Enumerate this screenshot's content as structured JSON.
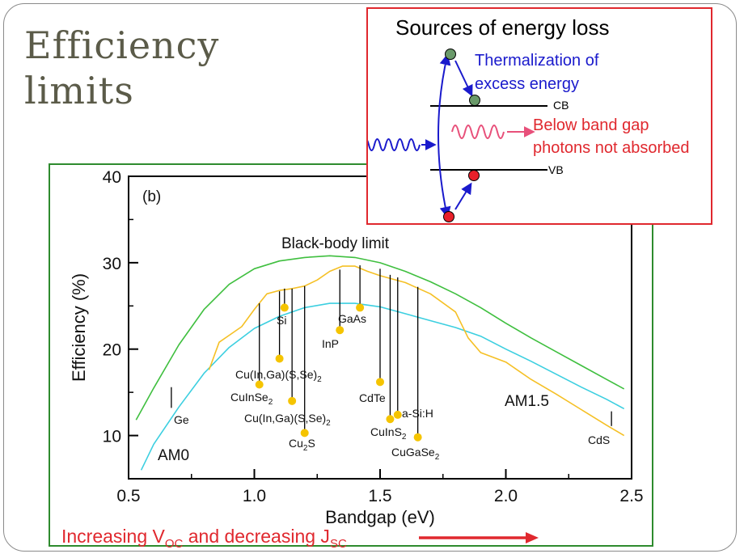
{
  "slide": {
    "title_line1": "Efficiency",
    "title_line2": "limits"
  },
  "chart_data": {
    "type": "line",
    "panel_label": "(b)",
    "xlabel": "Bandgap (eV)",
    "ylabel": "Efficiency (%)",
    "xlim": [
      0.5,
      2.5
    ],
    "ylim": [
      5,
      40
    ],
    "x_ticks": [
      0.5,
      1.0,
      1.5,
      2.0,
      2.5
    ],
    "x_tick_labels": [
      "0.5",
      "1.0",
      "1.5",
      "2.0",
      "2.5"
    ],
    "y_ticks": [
      10,
      20,
      30,
      40
    ],
    "y_tick_labels": [
      "10",
      "20",
      "30",
      "40"
    ],
    "grid": false,
    "series": [
      {
        "name": "Black-body limit",
        "color": "#3fbf3f",
        "points": [
          [
            0.53,
            11.8
          ],
          [
            0.6,
            15.5
          ],
          [
            0.7,
            20.5
          ],
          [
            0.8,
            24.6
          ],
          [
            0.9,
            27.5
          ],
          [
            1.0,
            29.3
          ],
          [
            1.1,
            30.2
          ],
          [
            1.2,
            30.6
          ],
          [
            1.3,
            30.8
          ],
          [
            1.4,
            30.6
          ],
          [
            1.5,
            30.0
          ],
          [
            1.6,
            29.0
          ],
          [
            1.7,
            27.8
          ],
          [
            1.8,
            26.4
          ],
          [
            1.9,
            24.8
          ],
          [
            2.0,
            23.0
          ],
          [
            2.1,
            21.3
          ],
          [
            2.2,
            19.7
          ],
          [
            2.3,
            18.1
          ],
          [
            2.4,
            16.5
          ],
          [
            2.47,
            15.4
          ]
        ]
      },
      {
        "name": "AM0",
        "color": "#3ccfe0",
        "points": [
          [
            0.55,
            6.0
          ],
          [
            0.6,
            9.0
          ],
          [
            0.7,
            13.3
          ],
          [
            0.8,
            17.2
          ],
          [
            0.9,
            20.2
          ],
          [
            1.0,
            22.4
          ],
          [
            1.1,
            23.8
          ],
          [
            1.2,
            24.8
          ],
          [
            1.3,
            25.3
          ],
          [
            1.4,
            25.3
          ],
          [
            1.5,
            24.9
          ],
          [
            1.6,
            24.1
          ],
          [
            1.7,
            23.3
          ],
          [
            1.8,
            22.5
          ],
          [
            1.9,
            21.5
          ],
          [
            2.0,
            20.0
          ],
          [
            2.1,
            18.6
          ],
          [
            2.2,
            17.1
          ],
          [
            2.3,
            15.6
          ],
          [
            2.4,
            14.2
          ],
          [
            2.47,
            13.1
          ]
        ]
      },
      {
        "name": "AM1.5",
        "color": "#f5c025",
        "points": [
          [
            0.82,
            17.6
          ],
          [
            0.86,
            20.8
          ],
          [
            0.9,
            21.6
          ],
          [
            0.95,
            22.6
          ],
          [
            1.0,
            24.6
          ],
          [
            1.05,
            26.4
          ],
          [
            1.1,
            26.8
          ],
          [
            1.15,
            27.0
          ],
          [
            1.2,
            27.3
          ],
          [
            1.25,
            28.0
          ],
          [
            1.3,
            29.0
          ],
          [
            1.35,
            29.6
          ],
          [
            1.4,
            29.6
          ],
          [
            1.45,
            29.0
          ],
          [
            1.5,
            28.5
          ],
          [
            1.6,
            27.7
          ],
          [
            1.7,
            26.4
          ],
          [
            1.8,
            24.3
          ],
          [
            1.85,
            21.3
          ],
          [
            1.9,
            19.6
          ],
          [
            2.0,
            18.5
          ],
          [
            2.1,
            16.5
          ],
          [
            2.2,
            14.8
          ],
          [
            2.3,
            13.0
          ],
          [
            2.4,
            11.2
          ],
          [
            2.47,
            10.0
          ]
        ]
      }
    ],
    "curve_labels": [
      "Black-body limit",
      "AM0",
      "AM1.5"
    ],
    "materials": [
      {
        "name": "Ge",
        "bandgap": 0.67,
        "line_bottom": 13.2,
        "line_top": 15.6
      },
      {
        "name": "Si",
        "bandgap": 1.12,
        "line_bottom": 24.9,
        "line_top": 27.0,
        "eff": 24.8
      },
      {
        "name": "InP",
        "bandgap": 1.34,
        "line_bottom": 22.3,
        "line_top": 29.2,
        "eff": 22.2
      },
      {
        "name": "GaAs",
        "bandgap": 1.42,
        "line_bottom": 24.9,
        "line_top": 29.7,
        "eff": 24.8
      },
      {
        "name": "Cu(In,Ga)(S,Se)2",
        "bandgap": 1.1,
        "line_bottom": 19.0,
        "line_top": 26.7,
        "eff": 18.9
      },
      {
        "name": "CuInSe2",
        "bandgap": 1.02,
        "line_bottom": 16.0,
        "line_top": 25.3,
        "eff": 15.9
      },
      {
        "name": "Cu(In,Ga)(S,Se)2",
        "bandgap": 1.15,
        "line_bottom": 14.1,
        "line_top": 27.0,
        "eff": 14.0
      },
      {
        "name": "Cu2S",
        "bandgap": 1.2,
        "line_bottom": 10.4,
        "line_top": 27.3,
        "eff": 10.3
      },
      {
        "name": "CdTe",
        "bandgap": 1.5,
        "line_bottom": 16.3,
        "line_top": 29.3,
        "eff": 16.2
      },
      {
        "name": "CuInS2",
        "bandgap": 1.54,
        "line_bottom": 12.0,
        "line_top": 28.6,
        "eff": 11.9
      },
      {
        "name": "a-Si:H",
        "bandgap": 1.57,
        "line_bottom": 12.5,
        "line_top": 28.3,
        "eff": 12.4
      },
      {
        "name": "CuGaSe2",
        "bandgap": 1.65,
        "line_bottom": 9.9,
        "line_top": 27.2,
        "eff": 9.8
      },
      {
        "name": "CdS",
        "bandgap": 2.42,
        "line_bottom": 11.1,
        "line_top": 12.8
      }
    ]
  },
  "inset": {
    "title": "Sources of energy loss",
    "cb_label": "CB",
    "vb_label": "VB",
    "thermalization_line1": "Thermalization of",
    "thermalization_line2": "excess energy",
    "below_gap_line1": "Below band gap",
    "below_gap_line2": "photons not absorbed",
    "colors": {
      "border": "#e0282e",
      "blue": "#1a1acc",
      "red": "#e0282e",
      "electron": "#6a9a6a",
      "hole": "#e8202a",
      "photon_low": "#e8507a"
    }
  },
  "caption": {
    "prefix": "Increasing V",
    "sub1": "OC",
    "middle": " and decreasing J",
    "sub2": "SC"
  }
}
